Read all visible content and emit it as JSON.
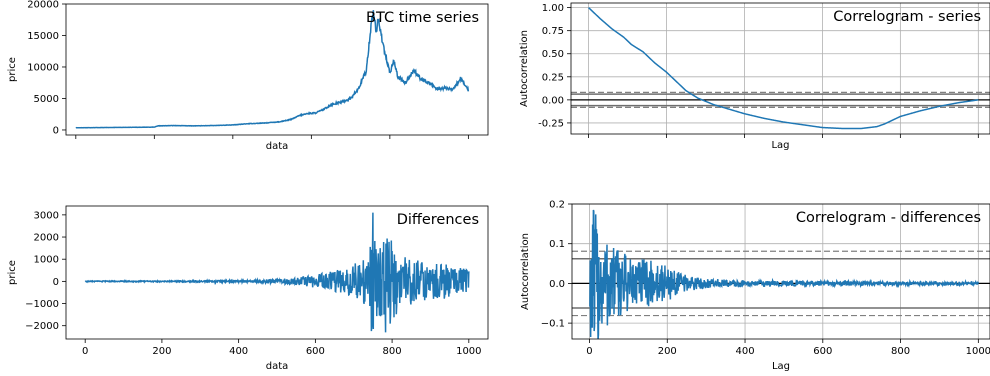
{
  "chart_data": [
    {
      "type": "line",
      "panel": "top-left",
      "title": "BTC time series",
      "xlabel": "data",
      "ylabel": "price",
      "xlim": [
        -25,
        1050
      ],
      "ylim": [
        -800,
        20000
      ],
      "x_ticks": [
        0,
        200,
        400,
        600,
        800,
        1000
      ],
      "x_tick_labels": [],
      "y_ticks": [
        0,
        5000,
        10000,
        15000,
        20000
      ],
      "y_tick_labels": [
        "0",
        "5000",
        "10000",
        "15000",
        "20000"
      ],
      "color": "#1f77b4",
      "series_points": [
        [
          0,
          350
        ],
        [
          100,
          400
        ],
        [
          200,
          450
        ],
        [
          210,
          650
        ],
        [
          250,
          700
        ],
        [
          300,
          650
        ],
        [
          350,
          700
        ],
        [
          400,
          800
        ],
        [
          440,
          1000
        ],
        [
          480,
          1100
        ],
        [
          520,
          1300
        ],
        [
          550,
          1700
        ],
        [
          570,
          2300
        ],
        [
          590,
          2600
        ],
        [
          610,
          2700
        ],
        [
          630,
          3200
        ],
        [
          650,
          4000
        ],
        [
          680,
          4500
        ],
        [
          700,
          5000
        ],
        [
          720,
          6500
        ],
        [
          740,
          9500
        ],
        [
          752,
          16500
        ],
        [
          758,
          19000
        ],
        [
          765,
          15500
        ],
        [
          770,
          17500
        ],
        [
          780,
          14500
        ],
        [
          790,
          11500
        ],
        [
          800,
          9000
        ],
        [
          810,
          11000
        ],
        [
          820,
          8500
        ],
        [
          840,
          7500
        ],
        [
          860,
          9500
        ],
        [
          880,
          8000
        ],
        [
          900,
          7500
        ],
        [
          920,
          6500
        ],
        [
          940,
          6700
        ],
        [
          960,
          6300
        ],
        [
          980,
          8200
        ],
        [
          990,
          7200
        ],
        [
          1000,
          6300
        ]
      ]
    },
    {
      "type": "line",
      "panel": "top-right",
      "title": "Correlogram - series",
      "xlabel": "Lag",
      "ylabel": "Autocorrelation",
      "xlim": [
        -45,
        1030
      ],
      "ylim": [
        -0.37,
        1.05
      ],
      "x_ticks": [
        0,
        200,
        400,
        600,
        800,
        1000
      ],
      "x_tick_labels": [],
      "y_ticks": [
        -0.25,
        0.0,
        0.25,
        0.5,
        0.75,
        1.0
      ],
      "y_tick_labels": [
        "-0.25",
        "0.00",
        "0.25",
        "0.50",
        "0.75",
        "1.00"
      ],
      "confidence_lines": [
        0.081,
        0.062,
        -0.062,
        -0.081
      ],
      "grid": true,
      "color": "#1f77b4",
      "series_points": [
        [
          0,
          1.0
        ],
        [
          30,
          0.88
        ],
        [
          60,
          0.77
        ],
        [
          90,
          0.68
        ],
        [
          110,
          0.6
        ],
        [
          140,
          0.52
        ],
        [
          170,
          0.4
        ],
        [
          200,
          0.3
        ],
        [
          230,
          0.18
        ],
        [
          250,
          0.1
        ],
        [
          280,
          0.02
        ],
        [
          320,
          -0.05
        ],
        [
          360,
          -0.1
        ],
        [
          400,
          -0.15
        ],
        [
          450,
          -0.2
        ],
        [
          500,
          -0.24
        ],
        [
          550,
          -0.27
        ],
        [
          600,
          -0.3
        ],
        [
          650,
          -0.31
        ],
        [
          700,
          -0.31
        ],
        [
          740,
          -0.29
        ],
        [
          760,
          -0.26
        ],
        [
          800,
          -0.18
        ],
        [
          850,
          -0.12
        ],
        [
          900,
          -0.07
        ],
        [
          950,
          -0.03
        ],
        [
          1000,
          0.0
        ]
      ]
    },
    {
      "type": "line",
      "panel": "bottom-left",
      "title": "Differences",
      "xlabel": "data",
      "ylabel": "price",
      "xlim": [
        -50,
        1050
      ],
      "ylim": [
        -2600,
        3400
      ],
      "x_ticks": [
        0,
        200,
        400,
        600,
        800,
        1000
      ],
      "x_tick_labels": [
        "0",
        "200",
        "400",
        "600",
        "800",
        "1000"
      ],
      "y_ticks": [
        -2000,
        -1000,
        0,
        1000,
        2000,
        3000
      ],
      "y_tick_labels": [
        "−2000",
        "−1000",
        "0",
        "1000",
        "2000",
        "3000"
      ],
      "color": "#1f77b4",
      "noise_envelope": [
        [
          0,
          20
        ],
        [
          300,
          30
        ],
        [
          440,
          60
        ],
        [
          540,
          150
        ],
        [
          600,
          300
        ],
        [
          680,
          600
        ],
        [
          740,
          1200
        ],
        [
          750,
          3100
        ],
        [
          770,
          1800
        ],
        [
          790,
          2300
        ],
        [
          820,
          1200
        ],
        [
          880,
          900
        ],
        [
          940,
          800
        ],
        [
          1000,
          500
        ]
      ]
    },
    {
      "type": "line",
      "panel": "bottom-right",
      "title": "Correlogram - differences",
      "xlabel": "Lag",
      "ylabel": "Autocorrelation",
      "xlim": [
        -45,
        1030
      ],
      "ylim": [
        -0.14,
        0.2
      ],
      "x_ticks": [
        0,
        200,
        400,
        600,
        800,
        1000
      ],
      "x_tick_labels": [
        "0",
        "200",
        "400",
        "600",
        "800",
        "1000"
      ],
      "y_ticks": [
        -0.1,
        0.0,
        0.1,
        0.2
      ],
      "y_tick_labels": [
        "−0.1",
        "0.0",
        "0.1",
        "0.2"
      ],
      "confidence_lines": [
        0.081,
        0.062,
        -0.062,
        -0.081
      ],
      "grid": true,
      "color": "#1f77b4",
      "noise_envelope": [
        [
          1,
          0.13
        ],
        [
          10,
          0.19
        ],
        [
          30,
          0.15
        ],
        [
          60,
          0.1
        ],
        [
          100,
          0.07
        ],
        [
          150,
          0.06
        ],
        [
          200,
          0.045
        ],
        [
          250,
          0.02
        ],
        [
          300,
          0.012
        ],
        [
          400,
          0.008
        ],
        [
          600,
          0.006
        ],
        [
          1000,
          0.004
        ]
      ]
    }
  ]
}
